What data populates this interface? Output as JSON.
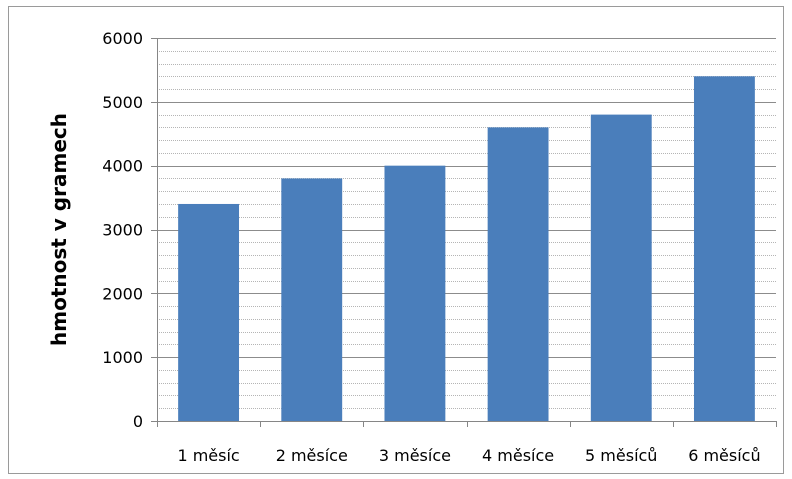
{
  "chart_data": {
    "type": "bar",
    "title": "",
    "xlabel": "",
    "ylabel": "hmotnost v gramech",
    "categories": [
      "1 měsíc",
      "2 měsíce",
      "3 měsíce",
      "4 měsíce",
      "5 měsíců",
      "6 měsíců"
    ],
    "values": [
      3400,
      3800,
      4000,
      4600,
      4800,
      5400
    ],
    "ylim": [
      0,
      6000
    ],
    "yticks": [
      0,
      1000,
      2000,
      3000,
      4000,
      5000,
      6000
    ],
    "ytick_labels": [
      "0",
      "1000",
      "2000",
      "3000",
      "4000",
      "5000",
      "6000"
    ],
    "grid": true,
    "bar_color": "#4a7ebb",
    "gridline_color": "#8c8c8c"
  }
}
